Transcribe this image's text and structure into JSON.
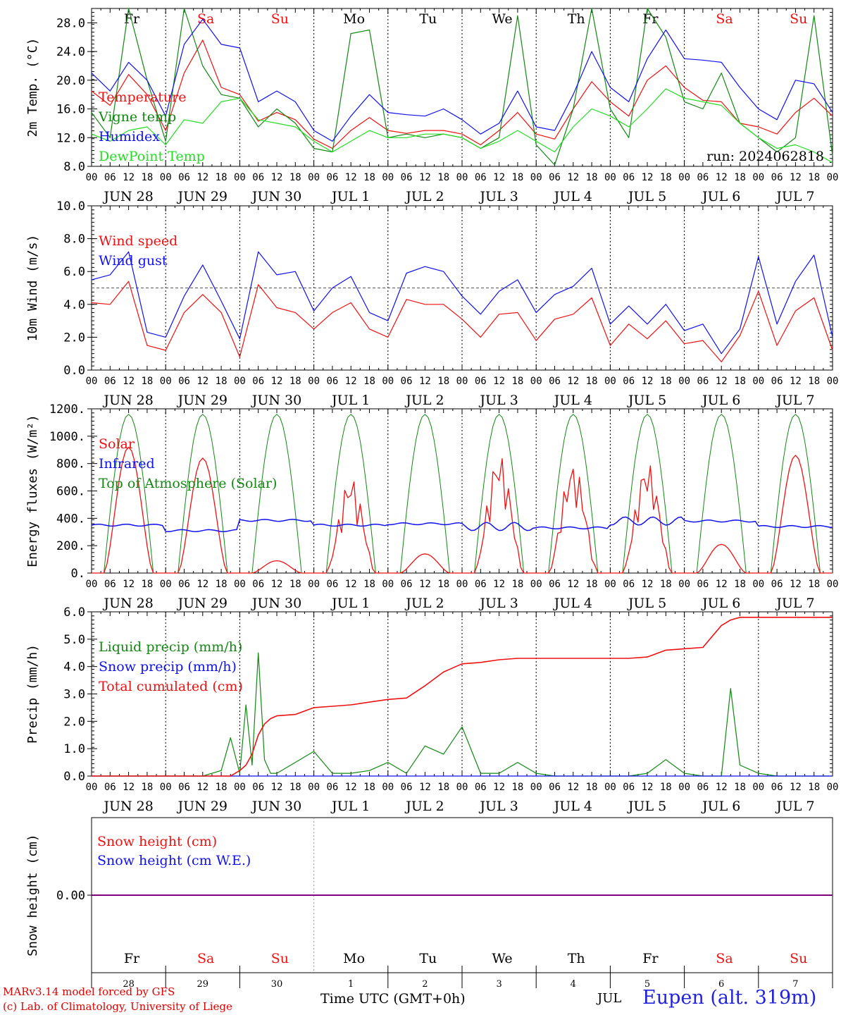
{
  "footer": {
    "credit_line1": "MARv3.14 model forced by GFS",
    "credit_line2": "(c) Lab. of Climatology, University of Liege",
    "x_axis_title": "Time UTC (GMT+0h)",
    "month_label": "JUL",
    "station": "Eupen (alt. 319m)"
  },
  "colors": {
    "red": "#ee1111",
    "green": "#118811",
    "blue": "#1111ee",
    "lightgreen": "#22dd22",
    "purple": "#800080"
  },
  "days": [
    {
      "abbr": "Fr",
      "weekend": false,
      "date": "JUN 28",
      "num": "28"
    },
    {
      "abbr": "Sa",
      "weekend": true,
      "date": "JUN 29",
      "num": "29"
    },
    {
      "abbr": "Su",
      "weekend": true,
      "date": "JUN 30",
      "num": "30"
    },
    {
      "abbr": "Mo",
      "weekend": false,
      "date": "JUL  1",
      "num": "1"
    },
    {
      "abbr": "Tu",
      "weekend": false,
      "date": "JUL  2",
      "num": "2"
    },
    {
      "abbr": "We",
      "weekend": false,
      "date": "JUL  3",
      "num": "3"
    },
    {
      "abbr": "Th",
      "weekend": false,
      "date": "JUL  4",
      "num": "4"
    },
    {
      "abbr": "Fr",
      "weekend": false,
      "date": "JUL  5",
      "num": "5"
    },
    {
      "abbr": "Sa",
      "weekend": true,
      "date": "JUL  6",
      "num": "6"
    },
    {
      "abbr": "Su",
      "weekend": true,
      "date": "JUL  7",
      "num": "7"
    }
  ],
  "hour_ticks": [
    "00",
    "06",
    "12",
    "18"
  ],
  "final_hour_tick": "00",
  "chart_data": [
    {
      "id": "temp",
      "type": "line",
      "ylabel": "2m Temp. (°C)",
      "ylim": [
        8,
        30
      ],
      "yticks": [
        8,
        12,
        16,
        20,
        24,
        28
      ],
      "ytick_labels": [
        "8.0",
        "12.0",
        "16.0",
        "20.0",
        "24.0",
        "28.0"
      ],
      "show_weekdays": true,
      "annotation": "run: 2024062818",
      "x": [
        0,
        6,
        12,
        18,
        24,
        30,
        36,
        42,
        48,
        54,
        60,
        66,
        72,
        78,
        84,
        90,
        96,
        102,
        108,
        114,
        120,
        126,
        132,
        138,
        144,
        150,
        156,
        162,
        168,
        174,
        180,
        186,
        192,
        198,
        204,
        210,
        216,
        222,
        228,
        234,
        240
      ],
      "series": [
        {
          "name": "Temperature",
          "color": "red",
          "values": [
            18.5,
            16.5,
            20.8,
            18.0,
            13.0,
            21.0,
            25.6,
            19.0,
            18.0,
            14.3,
            15.5,
            14.5,
            11.8,
            10.5,
            13.0,
            14.8,
            13.0,
            12.6,
            13.0,
            13.0,
            12.5,
            11.0,
            13.0,
            15.5,
            12.5,
            11.8,
            16.0,
            19.8,
            17.0,
            15.0,
            20.0,
            22.0,
            19.0,
            17.2,
            17.0,
            14.0,
            13.5,
            12.5,
            15.5,
            17.5,
            15.0
          ]
        },
        {
          "name": "Vigne temp",
          "color": "green",
          "values": [
            15.5,
            12.0,
            30.0,
            20.0,
            11.5,
            30.0,
            22.0,
            18.0,
            17.5,
            13.5,
            16.0,
            14.0,
            10.5,
            10.0,
            26.5,
            27.0,
            12.0,
            12.5,
            12.0,
            12.5,
            12.0,
            10.5,
            12.0,
            29.0,
            11.0,
            8.2,
            16.0,
            30.0,
            16.0,
            12.0,
            30.0,
            26.0,
            17.0,
            16.0,
            21.0,
            14.0,
            12.0,
            10.0,
            12.0,
            29.0,
            9.5
          ]
        },
        {
          "name": "Humidex",
          "color": "blue",
          "values": [
            21.0,
            18.5,
            22.5,
            20.0,
            15.0,
            25.0,
            28.5,
            25.0,
            24.5,
            17.0,
            18.5,
            17.0,
            13.0,
            11.5,
            15.0,
            18.0,
            15.5,
            15.2,
            15.0,
            16.0,
            14.5,
            12.5,
            14.0,
            18.5,
            13.5,
            13.0,
            18.0,
            24.0,
            19.0,
            17.0,
            23.0,
            27.0,
            23.0,
            22.8,
            22.5,
            19.0,
            16.0,
            14.5,
            20.0,
            19.5,
            15.5
          ]
        },
        {
          "name": "DewPoint Temp",
          "color": "lightgreen",
          "values": [
            12.5,
            11.5,
            13.0,
            13.5,
            11.0,
            14.5,
            14.0,
            17.0,
            17.5,
            14.5,
            14.0,
            13.5,
            11.5,
            10.0,
            11.5,
            13.0,
            12.0,
            12.0,
            12.5,
            12.5,
            12.0,
            10.5,
            11.5,
            13.0,
            11.5,
            10.0,
            13.5,
            16.0,
            15.0,
            13.5,
            16.0,
            18.8,
            17.5,
            17.0,
            16.5,
            14.0,
            12.0,
            10.5,
            11.0,
            10.0,
            8.5
          ]
        }
      ]
    },
    {
      "id": "wind",
      "type": "line",
      "ylabel": "10m Wind (m/s)",
      "ylim": [
        0,
        10
      ],
      "yticks": [
        0,
        2,
        4,
        6,
        8,
        10
      ],
      "ytick_labels": [
        "0.0",
        "2.0",
        "4.0",
        "6.0",
        "8.0",
        "10.0"
      ],
      "reference_line": 5,
      "x": [
        0,
        6,
        12,
        18,
        24,
        30,
        36,
        42,
        48,
        54,
        60,
        66,
        72,
        78,
        84,
        90,
        96,
        102,
        108,
        114,
        120,
        126,
        132,
        138,
        144,
        150,
        156,
        162,
        168,
        174,
        180,
        186,
        192,
        198,
        204,
        210,
        216,
        222,
        228,
        234,
        240
      ],
      "series": [
        {
          "name": "Wind speed",
          "color": "red",
          "values": [
            4.1,
            4.0,
            5.4,
            1.5,
            1.2,
            3.5,
            4.6,
            3.5,
            0.8,
            5.2,
            3.8,
            3.5,
            2.5,
            3.5,
            4.1,
            2.5,
            2.0,
            4.3,
            4.0,
            4.0,
            3.1,
            2.0,
            3.4,
            3.5,
            1.8,
            3.1,
            3.4,
            4.4,
            1.5,
            2.8,
            1.9,
            3.0,
            1.6,
            1.8,
            0.5,
            2.1,
            4.8,
            1.5,
            3.6,
            4.4,
            1.2
          ]
        },
        {
          "name": "Wind gust",
          "color": "blue",
          "values": [
            5.5,
            5.8,
            7.2,
            2.3,
            2.0,
            4.5,
            6.4,
            4.2,
            1.9,
            7.2,
            5.8,
            6.0,
            3.6,
            5.0,
            5.7,
            3.5,
            3.0,
            5.9,
            6.3,
            6.0,
            4.5,
            3.4,
            4.8,
            5.5,
            3.5,
            4.6,
            5.1,
            6.2,
            2.8,
            3.9,
            2.8,
            4.0,
            2.4,
            2.8,
            1.0,
            2.5,
            6.9,
            2.8,
            5.4,
            7.0,
            2.0
          ]
        }
      ]
    },
    {
      "id": "energy",
      "type": "line",
      "ylabel": "Energy fluxes (W/m²)",
      "ylim": [
        0,
        1200
      ],
      "yticks": [
        0,
        200,
        400,
        600,
        800,
        1000,
        1200
      ],
      "ytick_labels": [
        "0.",
        "200.",
        "400.",
        "600.",
        "800.",
        "1000.",
        "1200."
      ],
      "toa_peak": 1160,
      "daylight_hours": [
        4,
        20
      ],
      "solar_daily_peak": [
        920,
        840,
        90,
        700,
        140,
        870,
        800,
        810,
        210,
        860
      ],
      "infrared_daily": [
        350,
        310,
        385,
        350,
        360,
        340,
        330,
        380,
        380,
        340
      ],
      "series": [
        {
          "name": "Solar",
          "color": "red"
        },
        {
          "name": "Infrared",
          "color": "blue"
        },
        {
          "name": "Top of Atmosphere (Solar)",
          "color": "green"
        }
      ]
    },
    {
      "id": "precip",
      "type": "line",
      "ylabel": "Precip (mm/h)",
      "ylim": [
        0,
        6
      ],
      "yticks": [
        0,
        1,
        2,
        3,
        4,
        5,
        6
      ],
      "ytick_labels": [
        "0.0",
        "1.0",
        "2.0",
        "3.0",
        "4.0",
        "5.0",
        "6.0"
      ],
      "x": [
        0,
        6,
        12,
        18,
        24,
        30,
        36,
        42,
        45,
        48,
        50,
        52,
        54,
        56,
        58,
        60,
        66,
        72,
        78,
        84,
        90,
        96,
        102,
        108,
        114,
        120,
        126,
        132,
        138,
        144,
        150,
        156,
        162,
        168,
        174,
        180,
        186,
        192,
        198,
        204,
        207,
        210,
        216,
        222,
        228,
        234,
        240
      ],
      "series": [
        {
          "name": "Liquid precip (mm/h)",
          "color": "green",
          "values": [
            0,
            0,
            0,
            0,
            0,
            0,
            0,
            0.2,
            1.4,
            0.1,
            2.6,
            0.4,
            4.5,
            0.6,
            0.1,
            0.1,
            0.5,
            0.9,
            0.1,
            0.1,
            0.2,
            0.5,
            0.1,
            1.1,
            0.8,
            1.8,
            0.1,
            0.1,
            0.5,
            0.1,
            0,
            0,
            0,
            0,
            0,
            0.1,
            0.6,
            0.1,
            0,
            0,
            3.2,
            0.4,
            0.1,
            0,
            0,
            0,
            0
          ]
        },
        {
          "name": "Snow precip (mm/h)",
          "color": "blue",
          "values": [
            0,
            0,
            0,
            0,
            0,
            0,
            0,
            0,
            0,
            0,
            0,
            0,
            0,
            0,
            0,
            0,
            0,
            0,
            0,
            0,
            0,
            0,
            0,
            0,
            0,
            0,
            0,
            0,
            0,
            0,
            0,
            0,
            0,
            0,
            0,
            0,
            0,
            0,
            0,
            0,
            0,
            0,
            0,
            0,
            0,
            0,
            0
          ]
        },
        {
          "name": "Total cumulated (cm)",
          "color": "red",
          "values": [
            0,
            0,
            0,
            0,
            0,
            0,
            0,
            0,
            0,
            0.2,
            0.4,
            0.8,
            1.5,
            1.9,
            2.1,
            2.2,
            2.25,
            2.5,
            2.55,
            2.6,
            2.7,
            2.8,
            2.85,
            3.3,
            3.8,
            4.1,
            4.15,
            4.25,
            4.3,
            4.3,
            4.3,
            4.3,
            4.3,
            4.3,
            4.3,
            4.35,
            4.6,
            4.65,
            4.7,
            5.5,
            5.7,
            5.8,
            5.8,
            5.8,
            5.8,
            5.8,
            5.8
          ]
        }
      ]
    },
    {
      "id": "snow",
      "type": "line",
      "ylabel": "Snow height (cm)",
      "yticks": [
        0
      ],
      "ytick_labels": [
        "0.00"
      ],
      "show_bottom_weekdays": true,
      "series": [
        {
          "name": "Snow height (cm)",
          "color": "red",
          "values": [
            0,
            0
          ]
        },
        {
          "name": "Snow height (cm W.E.)",
          "color": "blue",
          "values": [
            0,
            0
          ]
        }
      ]
    }
  ]
}
